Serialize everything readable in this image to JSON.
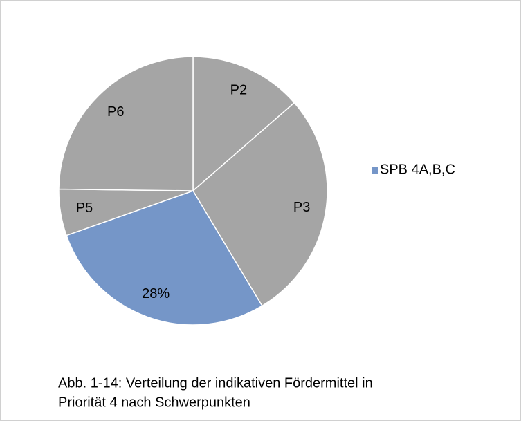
{
  "chart_data": {
    "type": "pie",
    "categories": [
      "P2",
      "P3",
      "SPB 4A,B,C",
      "P5",
      "P6"
    ],
    "values": [
      13.6,
      27.8,
      28.2,
      5.6,
      24.8
    ],
    "value_labels": [
      null,
      null,
      "28%",
      null,
      null
    ],
    "colors": [
      "#a5a5a5",
      "#a5a5a5",
      "#7596c8",
      "#a5a5a5",
      "#a5a5a5"
    ],
    "legend": "right",
    "caption": [
      "Abb. 1-14: Verteilung der indikativen Fördermittel in",
      "Priorität 4 nach Schwerpunkten"
    ]
  }
}
